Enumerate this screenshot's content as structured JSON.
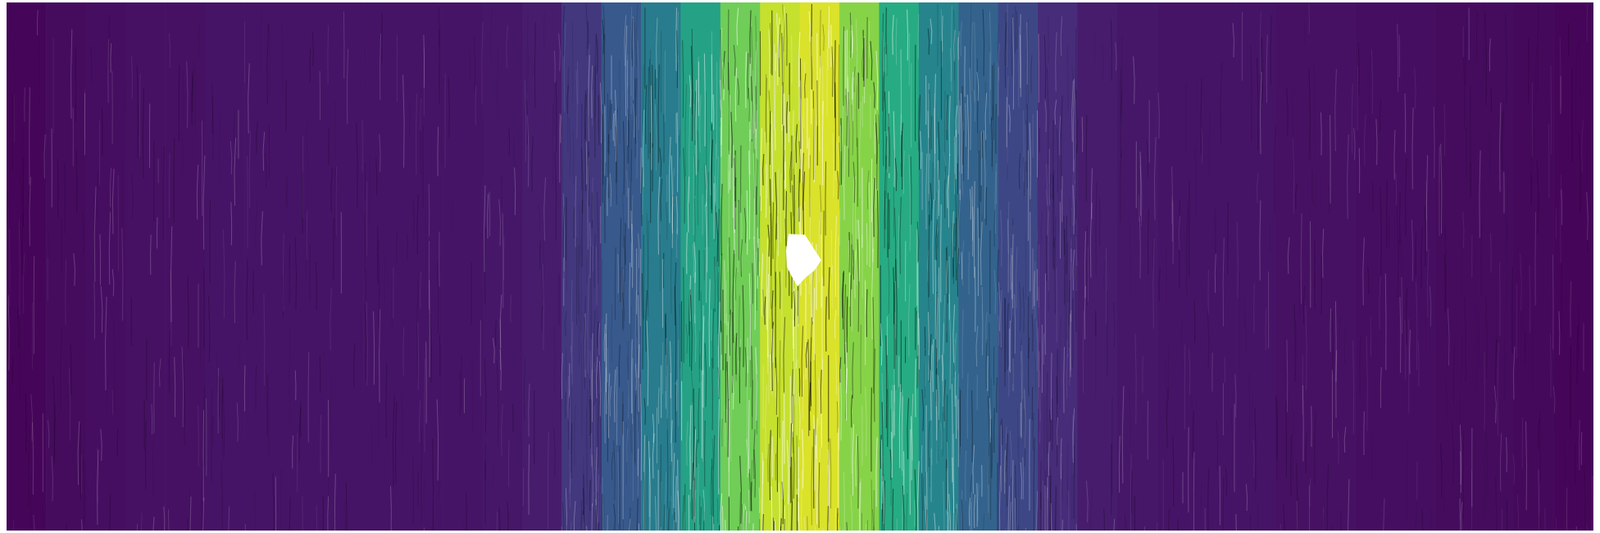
{
  "chart_data": {
    "type": "heatmap",
    "x": [
      1.25,
      3.75,
      6.25,
      8.75,
      11.25,
      13.75,
      16.25,
      18.75,
      21.25,
      23.75,
      26.25,
      28.75,
      31.25,
      33.75,
      36.25,
      38.75,
      41.25,
      43.75,
      46.25,
      48.75,
      51.25,
      53.75,
      56.25,
      58.75,
      61.25,
      63.75,
      66.25,
      68.75,
      71.25,
      73.75,
      76.25,
      78.75,
      81.25,
      83.75,
      86.25,
      88.75,
      91.25,
      93.75,
      96.25,
      98.75
    ],
    "values": [
      0.02,
      0.04,
      0.05,
      0.06,
      0.06,
      0.07,
      0.07,
      0.07,
      0.07,
      0.07,
      0.07,
      0.07,
      0.08,
      0.1,
      0.18,
      0.28,
      0.42,
      0.58,
      0.78,
      0.92,
      0.95,
      0.82,
      0.62,
      0.45,
      0.32,
      0.22,
      0.15,
      0.1,
      0.08,
      0.07,
      0.07,
      0.07,
      0.06,
      0.06,
      0.05,
      0.05,
      0.04,
      0.04,
      0.03,
      0.02
    ],
    "color_range": [
      0,
      1
    ],
    "xlim": [
      0,
      100
    ],
    "ylim": [
      0,
      1
    ],
    "grid": false,
    "tick_labels": false
  }
}
